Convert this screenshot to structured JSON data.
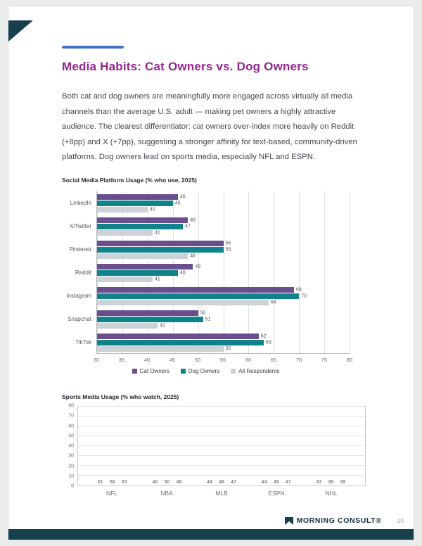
{
  "page": {
    "title": "Media Habits: Cat Owners vs. Dog Owners",
    "paragraph": "Both cat and dog owners are meaningfully more engaged across virtually all media channels than the average U.S. adult — making pet owners a highly attractive audience. The clearest differentiator: cat owners over-index more heavily on Reddit (+8pp) and X (+7pp), suggesting a stronger affinity for text-based, community-driven platforms. Dog owners lead on sports media, especially NFL and ESPN.",
    "brand": "MORNING CONSULT®",
    "page_number": "10"
  },
  "colors": {
    "cat": "#6a4e8e",
    "dog": "#10838a",
    "all": "#cdd2d6",
    "accent": "#4472c4",
    "title": "#93268b",
    "footer": "#16404e"
  },
  "chart_data": [
    {
      "type": "bar",
      "orientation": "horizontal",
      "title": "Social Media Platform Usage (% who use, 2025)",
      "categories": [
        "LinkedIn",
        "X/Twitter",
        "Pinterest",
        "Reddit",
        "Instagram",
        "Snapchat",
        "TikTok"
      ],
      "series": [
        {
          "name": "Cat Owners",
          "color_key": "cat",
          "values": [
            46,
            48,
            55,
            49,
            69,
            50,
            62
          ]
        },
        {
          "name": "Dog Owners",
          "color_key": "dog",
          "values": [
            45,
            47,
            55,
            46,
            70,
            51,
            63
          ]
        },
        {
          "name": "All Respondents",
          "color_key": "all",
          "values": [
            40,
            41,
            48,
            41,
            64,
            42,
            55
          ]
        }
      ],
      "xlim": [
        30,
        80
      ],
      "xticks": [
        30,
        35,
        40,
        45,
        50,
        55,
        60,
        65,
        70,
        75,
        80
      ],
      "grid": true,
      "legend_position": "bottom"
    },
    {
      "type": "bar",
      "orientation": "vertical",
      "title": "Sports Media Usage (% who watch, 2025)",
      "categories": [
        "NFL",
        "NBA",
        "MLB",
        "ESPN",
        "NHL"
      ],
      "series": [
        {
          "name": "All Respondents",
          "color_key": "all",
          "values": [
            61,
            46,
            44,
            44,
            33
          ]
        },
        {
          "name": "Dog Owners",
          "color_key": "dog",
          "values": [
            66,
            50,
            48,
            49,
            38
          ]
        },
        {
          "name": "Cat Owners",
          "color_key": "cat",
          "values": [
            63,
            48,
            47,
            47,
            39
          ]
        }
      ],
      "ylim": [
        0,
        80
      ],
      "yticks": [
        0,
        10,
        20,
        30,
        40,
        50,
        60,
        70,
        80
      ],
      "grid": true,
      "legend_position": "none"
    }
  ]
}
